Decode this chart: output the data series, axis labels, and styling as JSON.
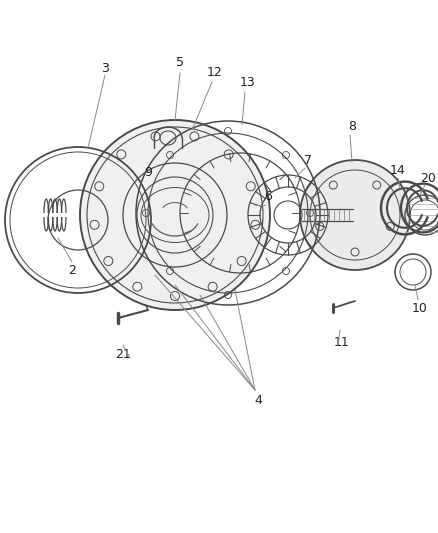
{
  "background_color": "#ffffff",
  "line_color": "#4a4a4a",
  "label_color": "#222222",
  "fig_width": 4.38,
  "fig_height": 5.33,
  "dpi": 100
}
